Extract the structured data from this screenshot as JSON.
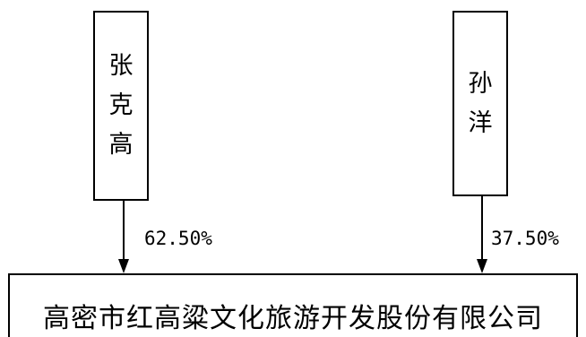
{
  "shareholders": [
    {
      "name_chars": [
        "张",
        "克",
        "高"
      ],
      "share": "62.50%"
    },
    {
      "name_chars": [
        "孙",
        "洋"
      ],
      "share": "37.50%"
    }
  ],
  "company": {
    "name": "高密市红高粱文化旅游开发股份有限公司"
  },
  "colors": {
    "line": "#000000",
    "background": "#ffffff"
  }
}
